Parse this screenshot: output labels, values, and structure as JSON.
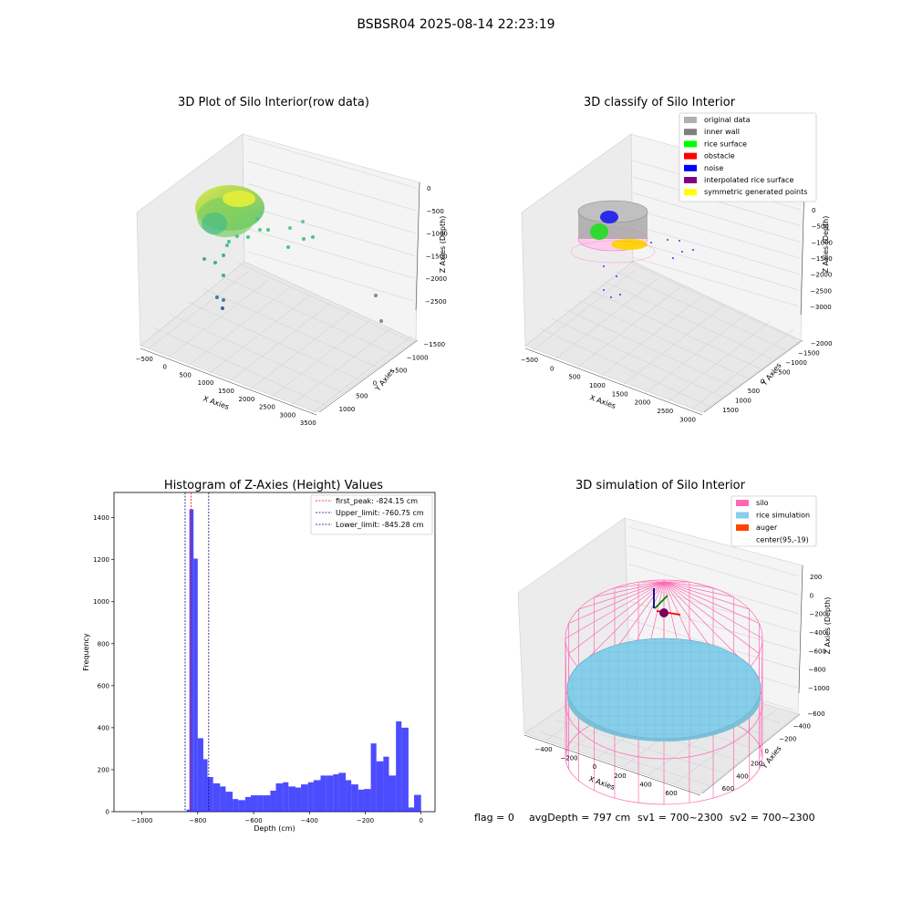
{
  "suptitle": "BSBSR04 2025-08-14 22:23:19",
  "footer": {
    "flag": "flag = 0",
    "avg_depth": "avgDepth = 797 cm",
    "sv1": "sv1 = 700~2300",
    "sv2": "sv2 = 700~2300"
  },
  "colors": {
    "hist_bar": "#0000ff",
    "first_peak": "#ff0000",
    "limits": "#00008b",
    "silo": "#ff69b4",
    "rice": "#87ceeb",
    "auger": "#ff4500",
    "pane": "#f2f2f2",
    "grid": "#d8d8d8"
  },
  "panel1": {
    "title": "3D Plot of Silo Interior(row data)",
    "xlabel": "X Axies",
    "ylabel": "Y Axies",
    "zlabel": "Z Axies (Depth)",
    "xticks": [
      "−500",
      "0",
      "500",
      "1000",
      "1500",
      "2000",
      "2500",
      "3000",
      "3500"
    ],
    "yticks": [
      "1000",
      "500",
      "0",
      "−500",
      "−1000",
      "−1500"
    ],
    "zticks": [
      "0",
      "−500",
      "−1000",
      "−1500",
      "−2000",
      "−2500"
    ]
  },
  "panel2": {
    "title": "3D classify of Silo Interior",
    "xlabel": "X Axies",
    "ylabel": "Y Axies",
    "zlabel": "Z Axies (Depth)",
    "xticks": [
      "−500",
      "0",
      "500",
      "1000",
      "1500",
      "2000",
      "2500",
      "3000"
    ],
    "yticks": [
      "1500",
      "1000",
      "500",
      "0",
      "−500",
      "−1000",
      "−1500",
      "−2000"
    ],
    "zticks": [
      "0",
      "−500",
      "−1000",
      "−1500",
      "−2000",
      "−2500",
      "−3000"
    ],
    "legend": [
      {
        "label": "original data",
        "color": "#b0b0b0"
      },
      {
        "label": "inner wall",
        "color": "#808080"
      },
      {
        "label": "rice surface",
        "color": "#00ff00"
      },
      {
        "label": "obstacle",
        "color": "#ff0000"
      },
      {
        "label": "noise",
        "color": "#0000ff"
      },
      {
        "label": "interpolated rice surface",
        "color": "#800080"
      },
      {
        "label": "symmetric generated points",
        "color": "#ffff00"
      }
    ]
  },
  "panel4": {
    "title": "3D simulation of Silo Interior",
    "xlabel": "X Axies",
    "ylabel": "Y Axies",
    "zlabel": "Z Axies (Depth)",
    "xticks": [
      "−400",
      "−200",
      "0",
      "200",
      "400",
      "600"
    ],
    "yticks": [
      "600",
      "400",
      "200",
      "0",
      "−200",
      "−400",
      "−600"
    ],
    "zticks": [
      "200",
      "0",
      "−200",
      "−400",
      "−600",
      "−800",
      "−1000"
    ],
    "legend": [
      {
        "label": "silo",
        "color": "#ff69b4"
      },
      {
        "label": "rice simulation",
        "color": "#87ceeb"
      },
      {
        "label": "auger",
        "color": "#ff4500"
      },
      {
        "label": "center(95,-19)",
        "color": ""
      }
    ]
  },
  "chart_data": {
    "type": "bar",
    "title": "Histogram of Z-Axies (Height) Values",
    "xlabel": "Depth (cm)",
    "ylabel": "Frequency",
    "xlim": [
      -1100,
      50
    ],
    "ylim": [
      0,
      1520
    ],
    "xticks": [
      "−1000",
      "−800",
      "−600",
      "−400",
      "−200",
      "0"
    ],
    "yticks": [
      "0",
      "200",
      "400",
      "600",
      "800",
      "1000",
      "1200",
      "1400"
    ],
    "bins": [
      {
        "x0": -840,
        "x1": -830,
        "y": 10
      },
      {
        "x0": -830,
        "x1": -815,
        "y": 1440
      },
      {
        "x0": -815,
        "x1": -800,
        "y": 1205
      },
      {
        "x0": -800,
        "x1": -780,
        "y": 350
      },
      {
        "x0": -780,
        "x1": -765,
        "y": 250
      },
      {
        "x0": -765,
        "x1": -745,
        "y": 165
      },
      {
        "x0": -745,
        "x1": -720,
        "y": 135
      },
      {
        "x0": -720,
        "x1": -700,
        "y": 120
      },
      {
        "x0": -700,
        "x1": -675,
        "y": 95
      },
      {
        "x0": -675,
        "x1": -655,
        "y": 60
      },
      {
        "x0": -655,
        "x1": -630,
        "y": 55
      },
      {
        "x0": -630,
        "x1": -610,
        "y": 70
      },
      {
        "x0": -610,
        "x1": -585,
        "y": 78
      },
      {
        "x0": -585,
        "x1": -565,
        "y": 78
      },
      {
        "x0": -565,
        "x1": -540,
        "y": 78
      },
      {
        "x0": -540,
        "x1": -520,
        "y": 100
      },
      {
        "x0": -520,
        "x1": -495,
        "y": 135
      },
      {
        "x0": -495,
        "x1": -475,
        "y": 140
      },
      {
        "x0": -475,
        "x1": -450,
        "y": 120
      },
      {
        "x0": -450,
        "x1": -430,
        "y": 115
      },
      {
        "x0": -430,
        "x1": -405,
        "y": 130
      },
      {
        "x0": -405,
        "x1": -385,
        "y": 140
      },
      {
        "x0": -385,
        "x1": -360,
        "y": 150
      },
      {
        "x0": -360,
        "x1": -340,
        "y": 172
      },
      {
        "x0": -340,
        "x1": -315,
        "y": 172
      },
      {
        "x0": -315,
        "x1": -295,
        "y": 178
      },
      {
        "x0": -295,
        "x1": -270,
        "y": 185
      },
      {
        "x0": -270,
        "x1": -250,
        "y": 150
      },
      {
        "x0": -250,
        "x1": -225,
        "y": 130
      },
      {
        "x0": -225,
        "x1": -205,
        "y": 105
      },
      {
        "x0": -205,
        "x1": -180,
        "y": 108
      },
      {
        "x0": -180,
        "x1": -160,
        "y": 325
      },
      {
        "x0": -160,
        "x1": -135,
        "y": 240
      },
      {
        "x0": -135,
        "x1": -115,
        "y": 262
      },
      {
        "x0": -115,
        "x1": -90,
        "y": 172
      },
      {
        "x0": -90,
        "x1": -70,
        "y": 430
      },
      {
        "x0": -70,
        "x1": -45,
        "y": 400
      },
      {
        "x0": -45,
        "x1": -25,
        "y": 20
      },
      {
        "x0": -25,
        "x1": 0,
        "y": 80
      }
    ],
    "vlines": [
      {
        "name": "first_peak: -824.15 cm",
        "x": -824.15,
        "color": "#ff0000"
      },
      {
        "name": "Upper_limit: -760.75 cm",
        "x": -760.75,
        "color": "#00008b"
      },
      {
        "name": "Lower_limit: -845.28 cm",
        "x": -845.28,
        "color": "#00008b"
      }
    ]
  }
}
